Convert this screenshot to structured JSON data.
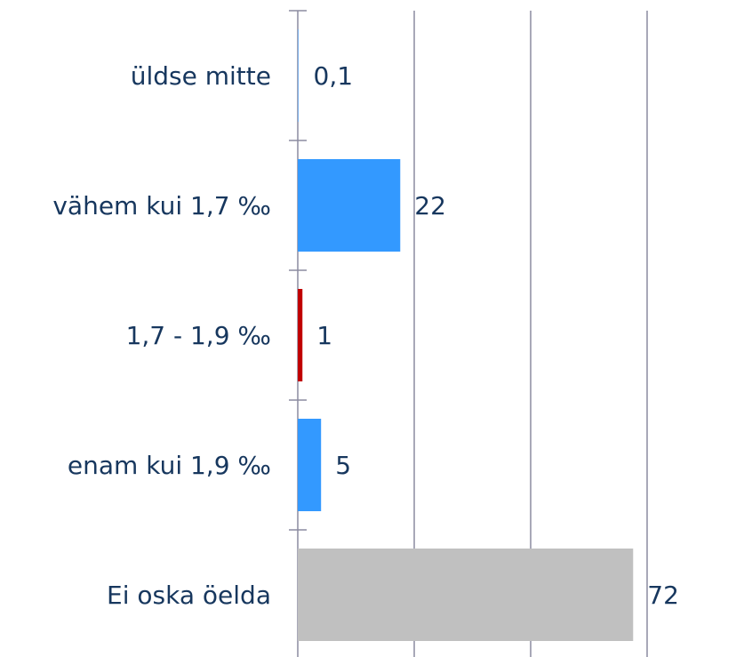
{
  "chart_data": {
    "type": "bar",
    "orientation": "horizontal",
    "categories": [
      "üldse mitte",
      "vähem kui 1,7 ‰",
      "1,7 - 1,9 ‰",
      "enam kui 1,9 ‰",
      "Ei oska öelda"
    ],
    "values": [
      0.1,
      22,
      1,
      5,
      72
    ],
    "value_labels": [
      "0,1",
      "22",
      "1",
      "5",
      "72"
    ],
    "colors": [
      "#3399ff",
      "#3399ff",
      "#c00000",
      "#3399ff",
      "#c0c0c0"
    ],
    "xlim": [
      0,
      75
    ],
    "xticks": [
      0,
      25,
      50,
      75
    ],
    "grid": true
  }
}
